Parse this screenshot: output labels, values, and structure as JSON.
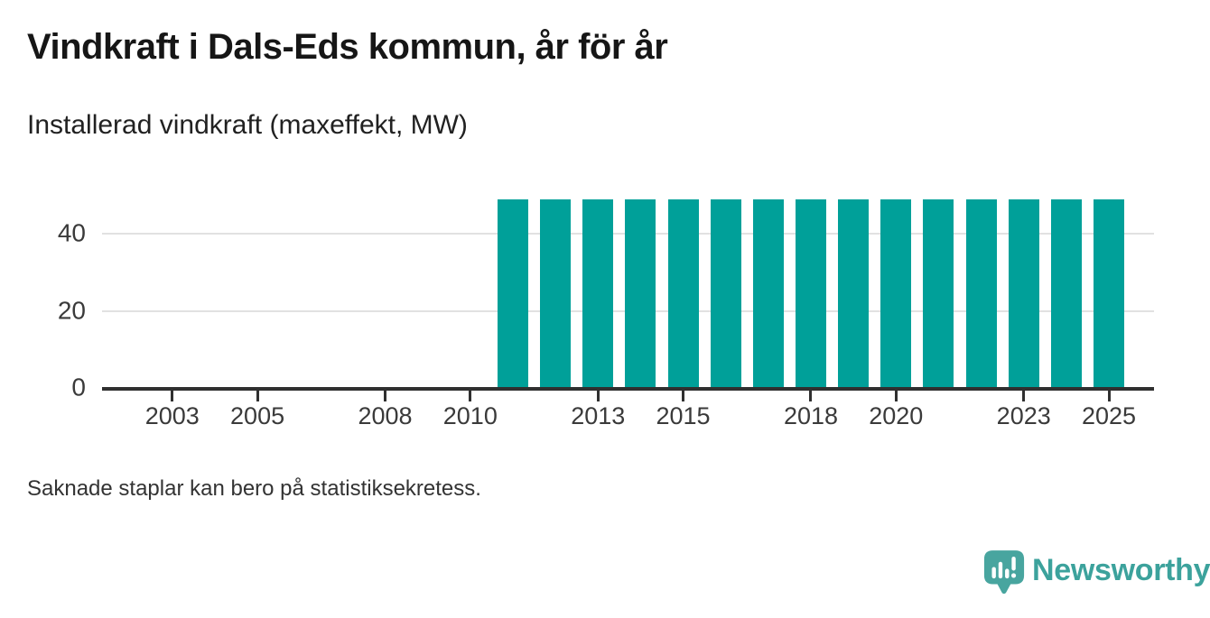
{
  "title": "Vindkraft i Dals-Eds kommun, år för år",
  "subtitle": "Installerad vindkraft (maxeffekt, MW)",
  "footnote": "Saknade staplar kan bero på statistiksekretess.",
  "branding": {
    "name": "Newsworthy",
    "icon": "newsworthy-bubble-chart-icon",
    "icon_color": "#48a59f",
    "text_color": "#3ca29c"
  },
  "colors": {
    "bar": "#00a099",
    "axis": "#303030",
    "gridline": "#e1e1e1",
    "title_text": "#161616",
    "tick_text": "#3a3a3a"
  },
  "chart_data": {
    "type": "bar",
    "title": "Vindkraft i Dals-Eds kommun, år för år",
    "subtitle": "Installerad vindkraft (maxeffekt, MW)",
    "unit": "MW",
    "ylabel": "",
    "xlabel": "",
    "x": [
      2011,
      2012,
      2013,
      2014,
      2015,
      2016,
      2017,
      2018,
      2019,
      2020,
      2021,
      2022,
      2023,
      2024,
      2025
    ],
    "values": [
      48.6,
      48.6,
      48.6,
      48.6,
      48.6,
      48.6,
      48.6,
      48.6,
      48.6,
      48.6,
      48.6,
      48.6,
      48.6,
      48.6,
      48.6
    ],
    "missing_years_shown_empty": [
      2001,
      2002,
      2003,
      2004,
      2005,
      2006,
      2007,
      2008,
      2009,
      2010
    ],
    "x_tick_labels": [
      2003,
      2005,
      2008,
      2010,
      2013,
      2015,
      2018,
      2020,
      2023,
      2025
    ],
    "y_ticks": [
      0,
      20,
      40
    ],
    "ylim": [
      0,
      50
    ],
    "x_range": [
      2001.35,
      2026.06
    ],
    "grid": "horizontal",
    "legend": "none",
    "bar_color": "#00a099"
  }
}
